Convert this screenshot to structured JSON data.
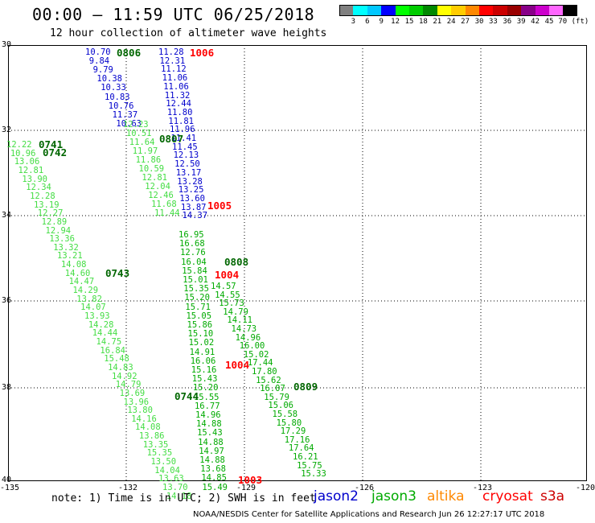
{
  "title": "00:00 – 11:59 UTC 06/25/2018",
  "subtitle": "12 hour collection of altimeter wave heights",
  "colorbar": {
    "colors": [
      "#808080",
      "#00ffff",
      "#00c8ff",
      "#0000ff",
      "#00ff00",
      "#00cc00",
      "#008800",
      "#ffff00",
      "#ffcc00",
      "#ff8800",
      "#ff0000",
      "#cc0000",
      "#990000",
      "#880088",
      "#cc00cc",
      "#ff66ff",
      "#000000"
    ],
    "labels": [
      "3",
      "6",
      "9",
      "12",
      "15",
      "18",
      "21",
      "24",
      "27",
      "30",
      "33",
      "36",
      "39",
      "42",
      "45",
      "70 (ft)"
    ]
  },
  "axes": {
    "lon_ticks": [
      "-135",
      "-132",
      "-129",
      "-126",
      "-123",
      "-120"
    ],
    "lat_ticks": [
      "30",
      "32",
      "34",
      "36",
      "38",
      "40"
    ]
  },
  "colors": {
    "blue": "#0000cc",
    "lightgreen": "#44dd44",
    "green": "#00aa00",
    "darkgreen": "#006600",
    "red": "#ff0000"
  },
  "time_labels": [
    {
      "t": "0806",
      "c": "darkgreen"
    },
    {
      "t": "1006",
      "c": "red"
    },
    {
      "t": "0741",
      "c": "darkgreen"
    },
    {
      "t": "0742",
      "c": "darkgreen"
    },
    {
      "t": "0807",
      "c": "darkgreen"
    },
    {
      "t": "1005",
      "c": "red"
    },
    {
      "t": "0808",
      "c": "darkgreen"
    },
    {
      "t": "1004",
      "c": "red"
    },
    {
      "t": "0743",
      "c": "darkgreen"
    },
    {
      "t": "1004",
      "c": "red"
    },
    {
      "t": "0809",
      "c": "darkgreen"
    },
    {
      "t": "0744",
      "c": "darkgreen"
    },
    {
      "t": "1003",
      "c": "red"
    }
  ],
  "tracks": {
    "t0806": {
      "color": "blue",
      "values": [
        "10.70",
        "9.84",
        "9.79",
        "10.38",
        "10.33",
        "10.83",
        "10.76",
        "11.37",
        "10.63"
      ]
    },
    "t0806b": {
      "color": "lightgreen",
      "values": [
        "12.23",
        "10.51",
        "11.64",
        "11.97",
        "11.86",
        "10.59",
        "12.81",
        "12.04",
        "12.46",
        "11.68",
        "11.44"
      ]
    },
    "t1006": {
      "color": "blue",
      "values": [
        "11.28",
        "12.31",
        "11.12",
        "11.06",
        "11.06",
        "11.32",
        "12.44",
        "11.80",
        "11.81",
        "11.96",
        "11.41",
        "11.45",
        "12.13",
        "12.50",
        "13.17",
        "13.28",
        "13.25",
        "13.60",
        "13.87",
        "14.37"
      ]
    },
    "t0741": {
      "color": "lightgreen",
      "values": [
        "12.22",
        "10.96",
        "13.06",
        "12.81",
        "13.90",
        "12.34",
        "12.28",
        "13.19",
        "12.27",
        "12.89",
        "12.94",
        "13.36",
        "13.32",
        "13.21",
        "14.08",
        "14.60",
        "14.47",
        "14.29",
        "13.82",
        "14.07",
        "13.93",
        "14.28",
        "14.44",
        "14.75",
        "16.84",
        "15.48",
        "14.83",
        "14.92",
        "14.79",
        "13.69",
        "13.96",
        "13.80",
        "14.16",
        "14.08",
        "13.86",
        "13.35",
        "15.35",
        "13.50",
        "14.04",
        "13.63",
        "13.70",
        "14.18"
      ]
    },
    "t1005": {
      "color": "green",
      "values": [
        "16.95",
        "16.68",
        "12.76",
        "16.04",
        "15.84",
        "15.01",
        "15.35",
        "15.20",
        "15.71",
        "15.05",
        "15.86",
        "15.10",
        "15.02",
        "14.91",
        "16.06",
        "15.16",
        "15.43",
        "15.20",
        "15.55",
        "16.77",
        "14.96",
        "14.88",
        "15.43",
        "14.88",
        "14.97",
        "14.88",
        "13.68",
        "14.85",
        "15.49"
      ]
    },
    "t0808": {
      "color": "green",
      "values": [
        "14.57",
        "14.55",
        "15.73",
        "14.79",
        "14.11",
        "14.73",
        "14.96",
        "16.00",
        "15.02",
        "17.44",
        "17.80",
        "15.62",
        "16.07",
        "15.79",
        "15.06",
        "15.58",
        "15.80",
        "17.29",
        "17.16",
        "17.64",
        "16.21",
        "15.75",
        "15.33"
      ]
    }
  },
  "note": "note: 1) Time is in UTC; 2) SWH is in feet",
  "satellites": [
    {
      "name": "jason2",
      "color": "#0000cc"
    },
    {
      "name": "jason3",
      "color": "#00aa00"
    },
    {
      "name": "altika",
      "color": "#ff8800"
    },
    {
      "name": "cryosat",
      "color": "#ff0000"
    },
    {
      "name": "s3a",
      "color": "#cc0000"
    }
  ],
  "credit": "NOAA/NESDIS Center for Satellite Applications and Research    Jun 26 12:27:17 UTC 2018"
}
